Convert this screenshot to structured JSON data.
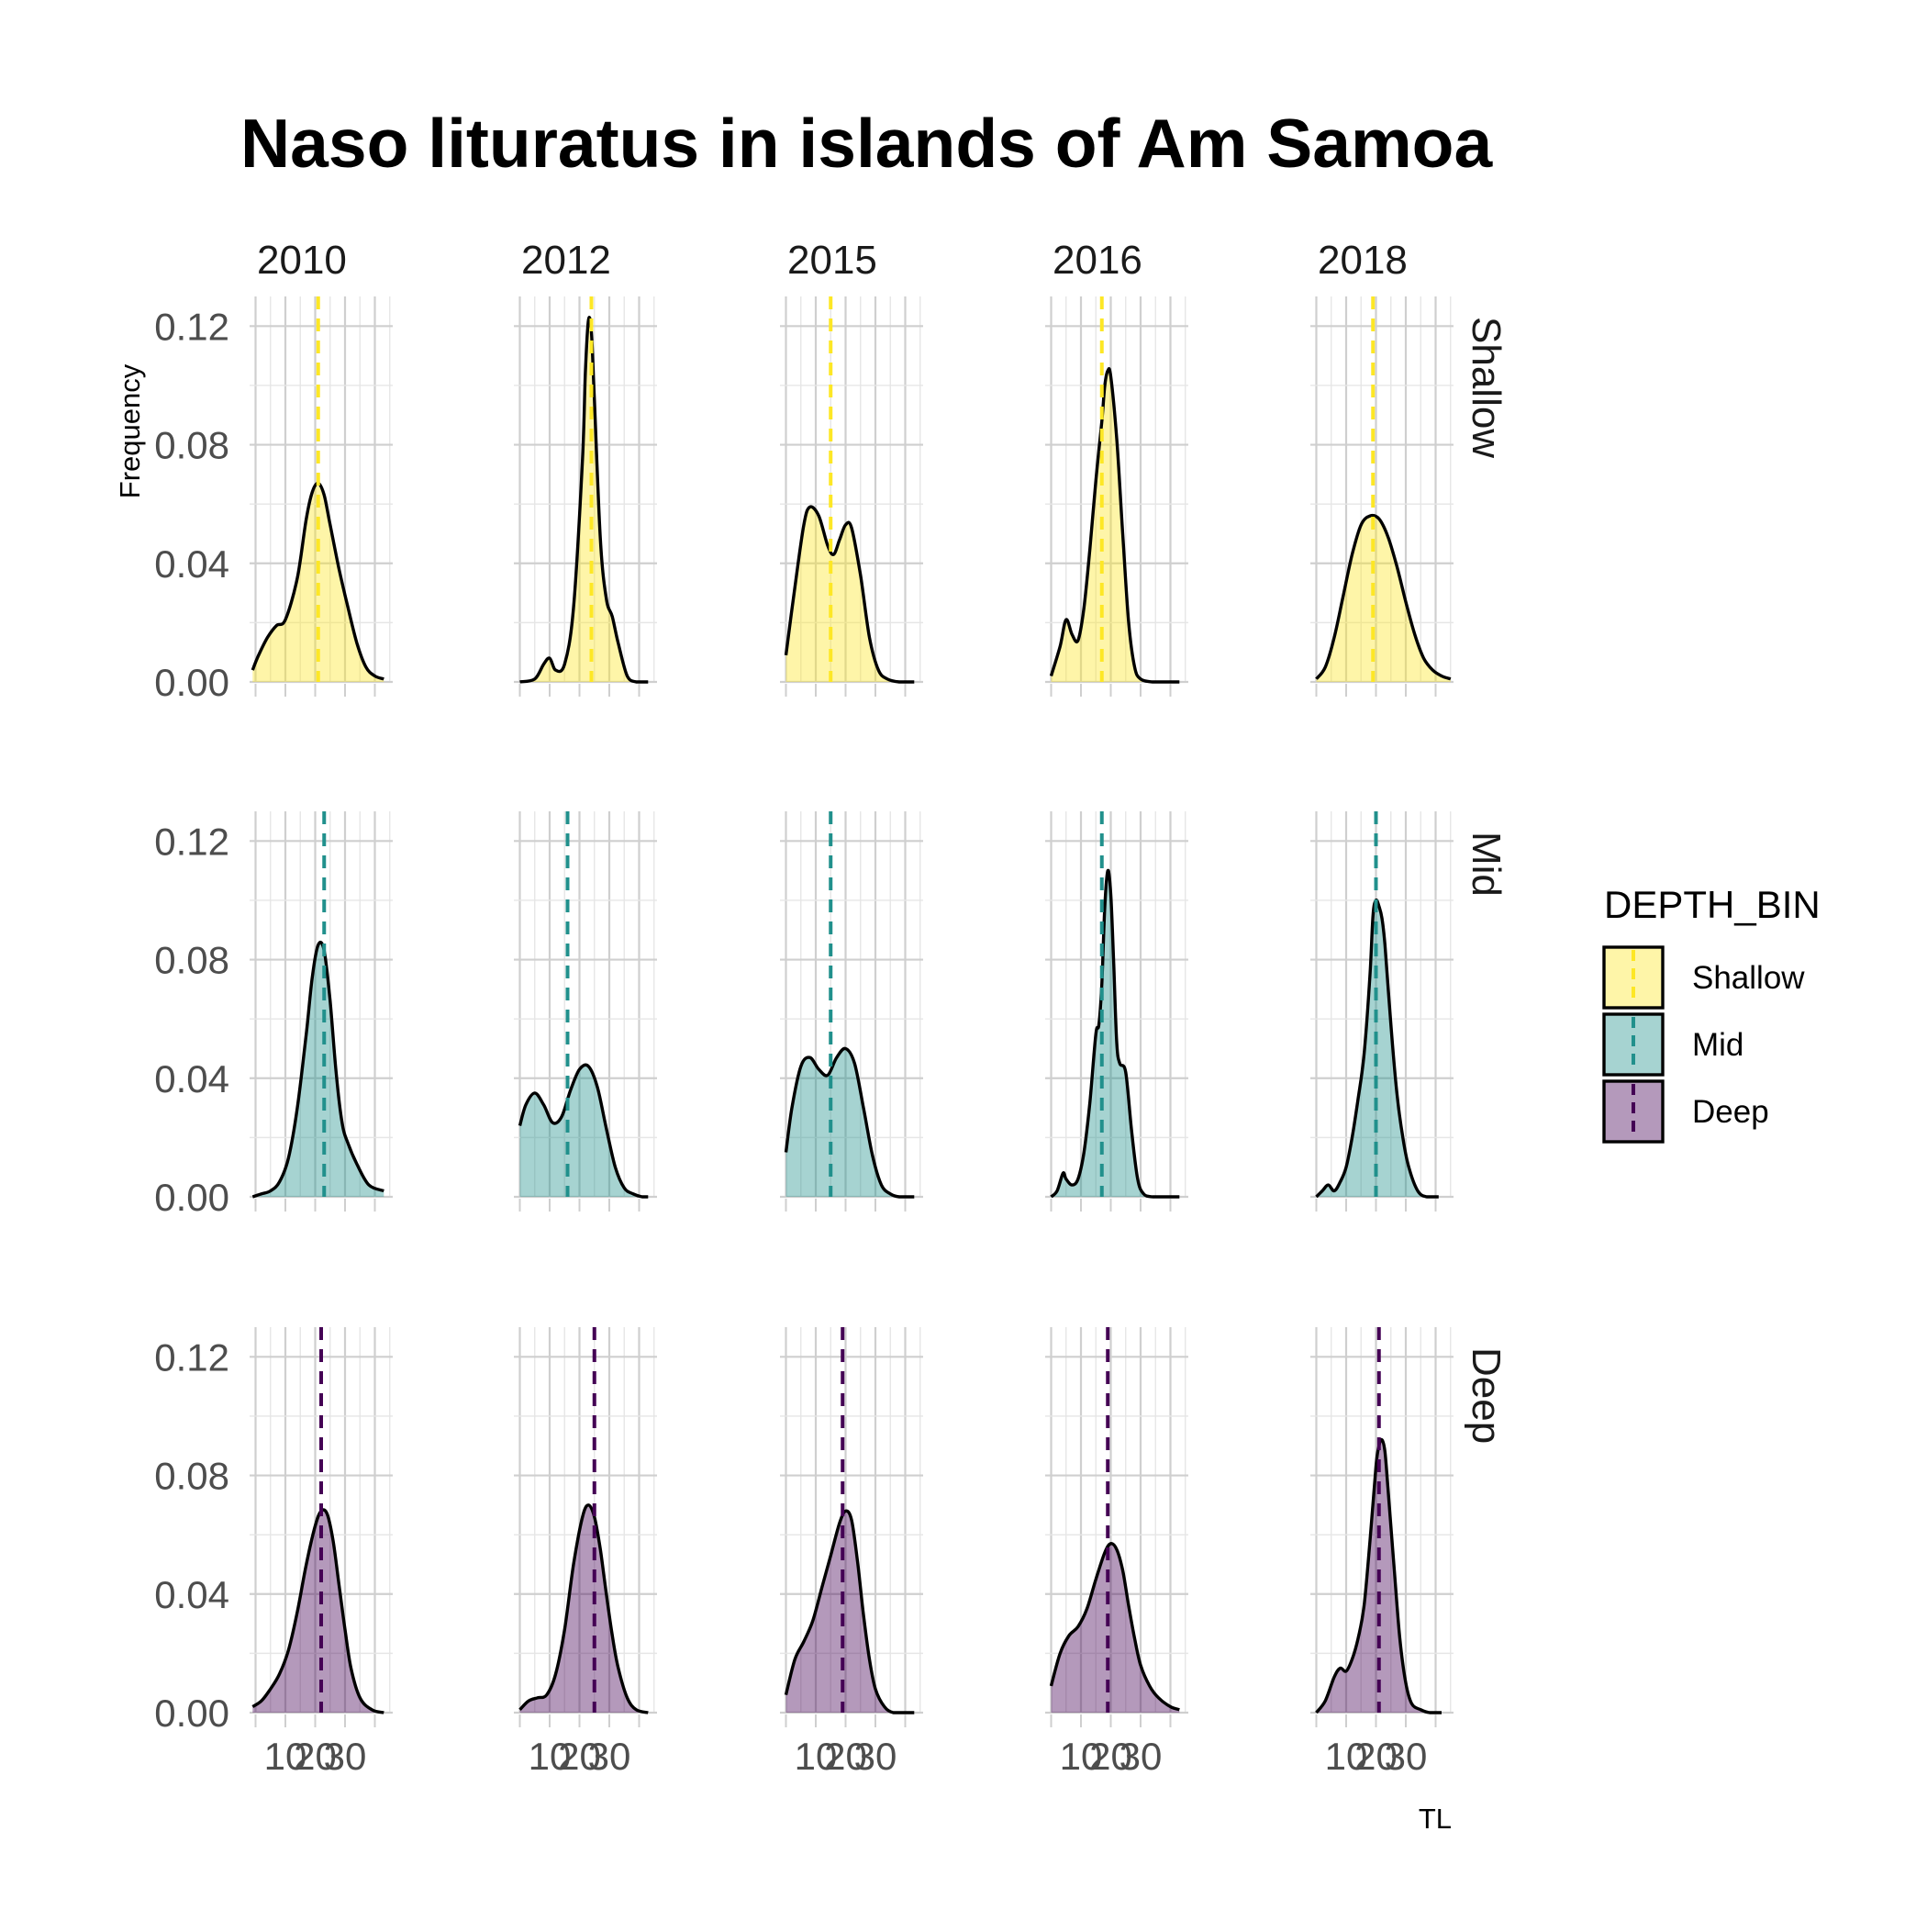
{
  "title": "Naso lituratus in islands of Am Samoa",
  "chart_data": {
    "type": "area",
    "subtype": "faceted density",
    "title": "Naso lituratus in islands of Am Samoa",
    "xlabel": "TL",
    "ylabel": "Frequency",
    "years": [
      "2010",
      "2012",
      "2015",
      "2016",
      "2018"
    ],
    "depth_bins": [
      "Shallow",
      "Mid",
      "Deep"
    ],
    "xlim": [
      -2,
      46
    ],
    "ylim": [
      0,
      0.13
    ],
    "x_ticks": [
      10,
      20,
      30
    ],
    "x_tick_labels": [
      "10",
      "20",
      "30"
    ],
    "y_ticks": [
      0,
      0.04,
      0.08,
      0.12
    ],
    "y_tick_labels": [
      "0.00",
      "0.04",
      "0.08",
      "0.12"
    ],
    "grid": true,
    "legend": {
      "title": "DEPTH_BIN",
      "position": "right",
      "items": [
        {
          "label": "Shallow",
          "fill": "#fde725"
        },
        {
          "label": "Mid",
          "fill": "#21908c"
        },
        {
          "label": "Deep",
          "fill": "#440154"
        }
      ]
    },
    "colors": {
      "Shallow": "#fde725",
      "Mid": "#21908c",
      "Deep": "#440154",
      "outline": "#000000"
    },
    "panels": [
      {
        "row": "Shallow",
        "year": "2010",
        "mean_tl": 21,
        "x": [
          -1,
          1,
          4,
          7,
          10,
          14,
          17,
          19,
          21,
          23,
          25,
          28,
          31,
          34,
          37,
          40,
          43
        ],
        "y": [
          0.004,
          0.009,
          0.015,
          0.019,
          0.021,
          0.035,
          0.055,
          0.064,
          0.067,
          0.063,
          0.053,
          0.038,
          0.025,
          0.013,
          0.005,
          0.002,
          0.001
        ]
      },
      {
        "row": "Shallow",
        "year": "2012",
        "mean_tl": 24,
        "x": [
          0,
          5,
          8,
          10,
          12,
          15,
          18,
          21,
          22,
          23,
          24,
          25,
          27,
          29,
          31,
          33,
          36,
          39,
          43
        ],
        "y": [
          0,
          0.001,
          0.006,
          0.008,
          0.004,
          0.006,
          0.025,
          0.075,
          0.105,
          0.122,
          0.118,
          0.095,
          0.048,
          0.028,
          0.022,
          0.013,
          0.002,
          0,
          0
        ]
      },
      {
        "row": "Shallow",
        "year": "2015",
        "mean_tl": 15,
        "x": [
          0,
          3,
          6,
          8,
          11,
          14,
          16,
          18,
          20,
          22,
          25,
          28,
          31,
          34,
          38,
          43
        ],
        "y": [
          0.009,
          0.032,
          0.053,
          0.059,
          0.056,
          0.046,
          0.043,
          0.048,
          0.053,
          0.052,
          0.036,
          0.015,
          0.004,
          0.001,
          0,
          0
        ]
      },
      {
        "row": "Shallow",
        "year": "2016",
        "mean_tl": 17,
        "x": [
          0,
          3,
          5,
          7,
          9,
          11,
          13,
          15,
          17,
          18,
          19,
          20,
          22,
          24,
          26,
          28,
          30,
          34,
          38,
          43
        ],
        "y": [
          0.002,
          0.012,
          0.021,
          0.016,
          0.014,
          0.025,
          0.045,
          0.068,
          0.088,
          0.1,
          0.105,
          0.103,
          0.082,
          0.05,
          0.02,
          0.005,
          0.001,
          0,
          0,
          0
        ]
      },
      {
        "row": "Shallow",
        "year": "2018",
        "mean_tl": 19,
        "x": [
          0,
          3,
          6,
          9,
          12,
          15,
          18,
          21,
          24,
          27,
          30,
          33,
          36,
          39,
          42,
          45
        ],
        "y": [
          0.001,
          0.005,
          0.015,
          0.029,
          0.043,
          0.053,
          0.056,
          0.055,
          0.049,
          0.039,
          0.027,
          0.016,
          0.008,
          0.004,
          0.002,
          0.001
        ]
      },
      {
        "row": "Mid",
        "year": "2010",
        "mean_tl": 23,
        "x": [
          -1,
          2,
          5,
          8,
          11,
          14,
          17,
          19,
          21,
          23,
          25,
          27,
          29,
          31,
          34,
          38,
          43
        ],
        "y": [
          0,
          0.001,
          0.002,
          0.005,
          0.013,
          0.03,
          0.055,
          0.074,
          0.085,
          0.083,
          0.066,
          0.042,
          0.025,
          0.018,
          0.011,
          0.004,
          0.002
        ]
      },
      {
        "row": "Mid",
        "year": "2012",
        "mean_tl": 16,
        "x": [
          0,
          2,
          5,
          8,
          11,
          14,
          17,
          20,
          23,
          26,
          29,
          32,
          35,
          38,
          41,
          43
        ],
        "y": [
          0.024,
          0.031,
          0.035,
          0.031,
          0.025,
          0.027,
          0.036,
          0.043,
          0.044,
          0.037,
          0.023,
          0.01,
          0.003,
          0.001,
          0,
          0
        ]
      },
      {
        "row": "Mid",
        "year": "2015",
        "mean_tl": 15,
        "x": [
          0,
          2,
          5,
          8,
          11,
          14,
          17,
          20,
          23,
          26,
          29,
          32,
          35,
          38,
          43
        ],
        "y": [
          0.015,
          0.03,
          0.044,
          0.047,
          0.043,
          0.041,
          0.047,
          0.05,
          0.045,
          0.03,
          0.014,
          0.004,
          0.001,
          0,
          0
        ]
      },
      {
        "row": "Mid",
        "year": "2016",
        "mean_tl": 17,
        "x": [
          0,
          2,
          4,
          5,
          7,
          9,
          11,
          13,
          15,
          16,
          17,
          18,
          19,
          20,
          21,
          22,
          23,
          25,
          27,
          29,
          31,
          34,
          38,
          43
        ],
        "y": [
          0,
          0.002,
          0.008,
          0.006,
          0.004,
          0.006,
          0.015,
          0.032,
          0.055,
          0.058,
          0.072,
          0.098,
          0.11,
          0.102,
          0.078,
          0.052,
          0.045,
          0.042,
          0.022,
          0.006,
          0.001,
          0,
          0,
          0
        ]
      },
      {
        "row": "Mid",
        "year": "2018",
        "mean_tl": 20,
        "x": [
          0,
          2,
          4,
          6,
          8,
          10,
          12,
          14,
          16,
          18,
          19,
          20,
          21,
          22,
          23,
          25,
          27,
          29,
          31,
          34,
          37,
          41
        ],
        "y": [
          0,
          0.002,
          0.004,
          0.002,
          0.005,
          0.01,
          0.02,
          0.033,
          0.048,
          0.075,
          0.095,
          0.1,
          0.098,
          0.094,
          0.085,
          0.058,
          0.035,
          0.02,
          0.01,
          0.002,
          0,
          0
        ]
      },
      {
        "row": "Deep",
        "year": "2010",
        "mean_tl": 22,
        "x": [
          -1,
          2,
          5,
          8,
          11,
          14,
          17,
          20,
          22,
          24,
          26,
          28,
          30,
          32,
          35,
          39,
          43
        ],
        "y": [
          0.002,
          0.004,
          0.008,
          0.013,
          0.021,
          0.034,
          0.05,
          0.063,
          0.068,
          0.067,
          0.058,
          0.043,
          0.028,
          0.015,
          0.005,
          0.001,
          0
        ]
      },
      {
        "row": "Deep",
        "year": "2012",
        "mean_tl": 25,
        "x": [
          0,
          3,
          6,
          9,
          12,
          15,
          18,
          21,
          23,
          25,
          27,
          29,
          31,
          33,
          36,
          39,
          43
        ],
        "y": [
          0.001,
          0.004,
          0.005,
          0.006,
          0.013,
          0.028,
          0.05,
          0.066,
          0.07,
          0.066,
          0.055,
          0.04,
          0.026,
          0.015,
          0.005,
          0.001,
          0
        ]
      },
      {
        "row": "Deep",
        "year": "2015",
        "mean_tl": 19,
        "x": [
          0,
          3,
          6,
          9,
          12,
          15,
          18,
          20,
          22,
          24,
          26,
          28,
          30,
          33,
          36,
          40,
          43
        ],
        "y": [
          0.006,
          0.018,
          0.024,
          0.031,
          0.042,
          0.053,
          0.064,
          0.068,
          0.065,
          0.051,
          0.033,
          0.018,
          0.008,
          0.002,
          0,
          0,
          0
        ]
      },
      {
        "row": "Deep",
        "year": "2016",
        "mean_tl": 19,
        "x": [
          0,
          3,
          6,
          9,
          12,
          15,
          18,
          20,
          22,
          24,
          26,
          28,
          30,
          33,
          36,
          40,
          43
        ],
        "y": [
          0.009,
          0.02,
          0.026,
          0.029,
          0.035,
          0.045,
          0.054,
          0.057,
          0.055,
          0.048,
          0.036,
          0.025,
          0.016,
          0.009,
          0.005,
          0.002,
          0.001
        ]
      },
      {
        "row": "Deep",
        "year": "2018",
        "mean_tl": 21,
        "x": [
          0,
          3,
          6,
          8,
          10,
          12,
          14,
          16,
          18,
          20,
          21,
          22,
          23,
          24,
          26,
          28,
          30,
          32,
          35,
          38,
          42
        ],
        "y": [
          0,
          0.004,
          0.012,
          0.015,
          0.014,
          0.018,
          0.025,
          0.036,
          0.058,
          0.083,
          0.09,
          0.092,
          0.088,
          0.076,
          0.05,
          0.025,
          0.01,
          0.003,
          0.001,
          0,
          0
        ]
      }
    ]
  }
}
